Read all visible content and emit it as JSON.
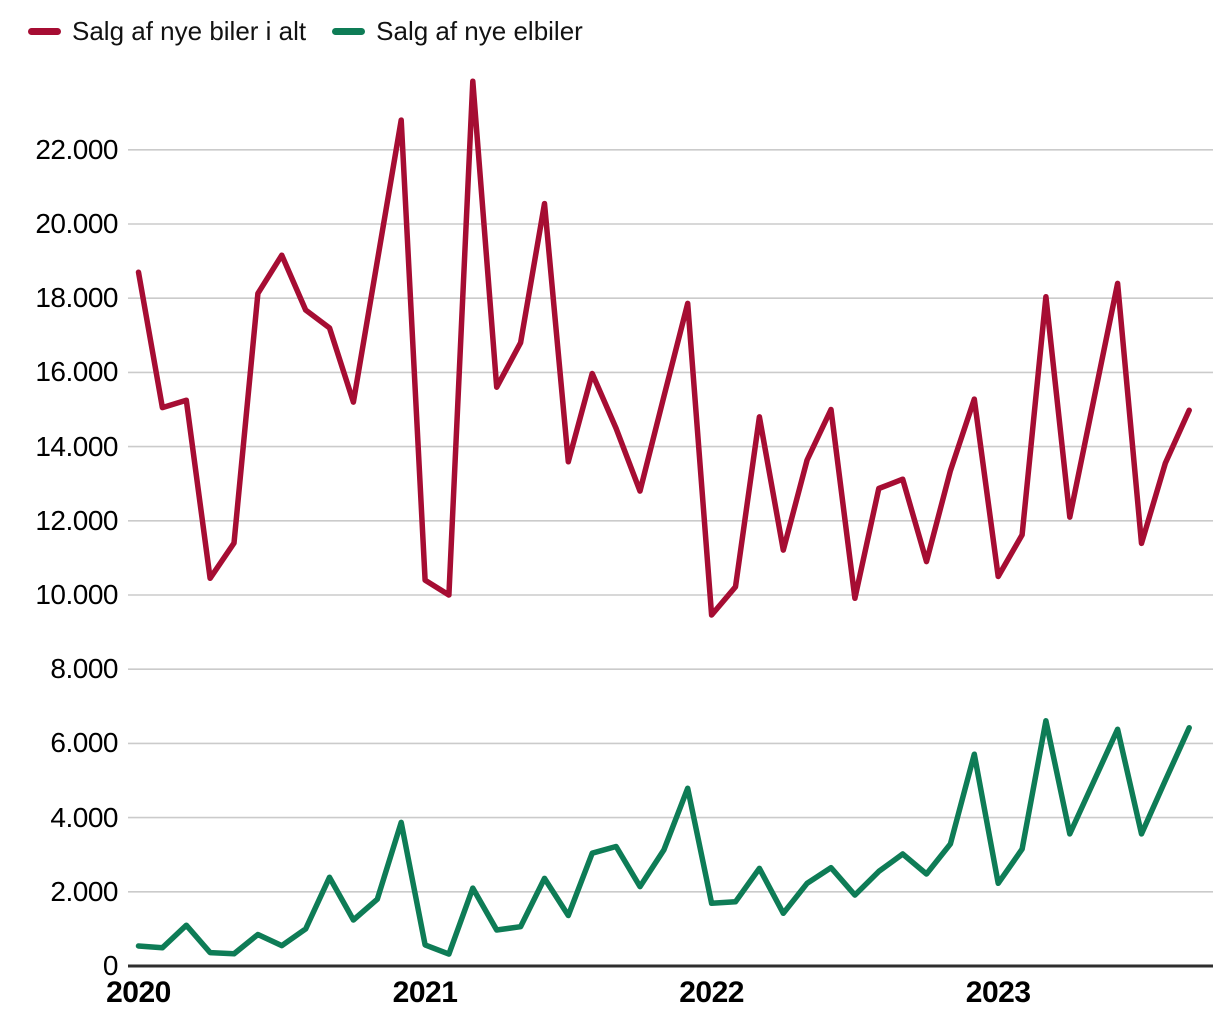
{
  "legend": {
    "items": [
      {
        "label": "Salg af nye biler i alt",
        "color": "#A60D33"
      },
      {
        "label": "Salg af nye elbiler",
        "color": "#0E7C56"
      }
    ]
  },
  "chart_data": {
    "type": "line",
    "frequency": "monthly",
    "x_start": "2020-01",
    "x_end": "2023-09",
    "ylim": [
      0,
      24000
    ],
    "grid": true,
    "legend_position": "top-left",
    "axis_color": "#2E2E2E",
    "gridline_color": "#CBCBCB",
    "y_ticks": {
      "values": [
        0,
        2000,
        4000,
        6000,
        8000,
        10000,
        12000,
        14000,
        16000,
        18000,
        20000,
        22000
      ],
      "labels": [
        "0",
        "2.000",
        "4.000",
        "6.000",
        "8.000",
        "10.000",
        "12.000",
        "14.000",
        "16.000",
        "18.000",
        "20.000",
        "22.000"
      ]
    },
    "x_ticks": {
      "month_indices": [
        0,
        12,
        24,
        36
      ],
      "labels": [
        "2020",
        "2021",
        "2022",
        "2023"
      ]
    },
    "series": [
      {
        "name": "Salg af nye biler i alt",
        "color": "#A60D33",
        "values": [
          18700,
          15050,
          15250,
          10450,
          11400,
          18130,
          19160,
          17680,
          17200,
          15200,
          19000,
          22800,
          10400,
          10000,
          23850,
          15600,
          16800,
          20550,
          13590,
          15970,
          14490,
          12800,
          15350,
          17860,
          9460,
          10220,
          14800,
          11210,
          13640,
          15000,
          9910,
          12870,
          13120,
          10900,
          13350,
          15280,
          10500,
          11620,
          18040,
          12100,
          15250,
          18400,
          11390,
          13550,
          14980
        ]
      },
      {
        "name": "Salg af nye elbiler",
        "color": "#0E7C56",
        "values": [
          540,
          490,
          1100,
          360,
          330,
          850,
          550,
          1000,
          2390,
          1240,
          1800,
          3870,
          570,
          320,
          2100,
          970,
          1060,
          2360,
          1360,
          3040,
          3220,
          2140,
          3130,
          4790,
          1690,
          1730,
          2630,
          1420,
          2230,
          2650,
          1910,
          2550,
          3020,
          2480,
          3290,
          5710,
          2230,
          3150,
          6610,
          3560,
          4970,
          6380,
          3560,
          5000,
          6420
        ]
      }
    ]
  }
}
